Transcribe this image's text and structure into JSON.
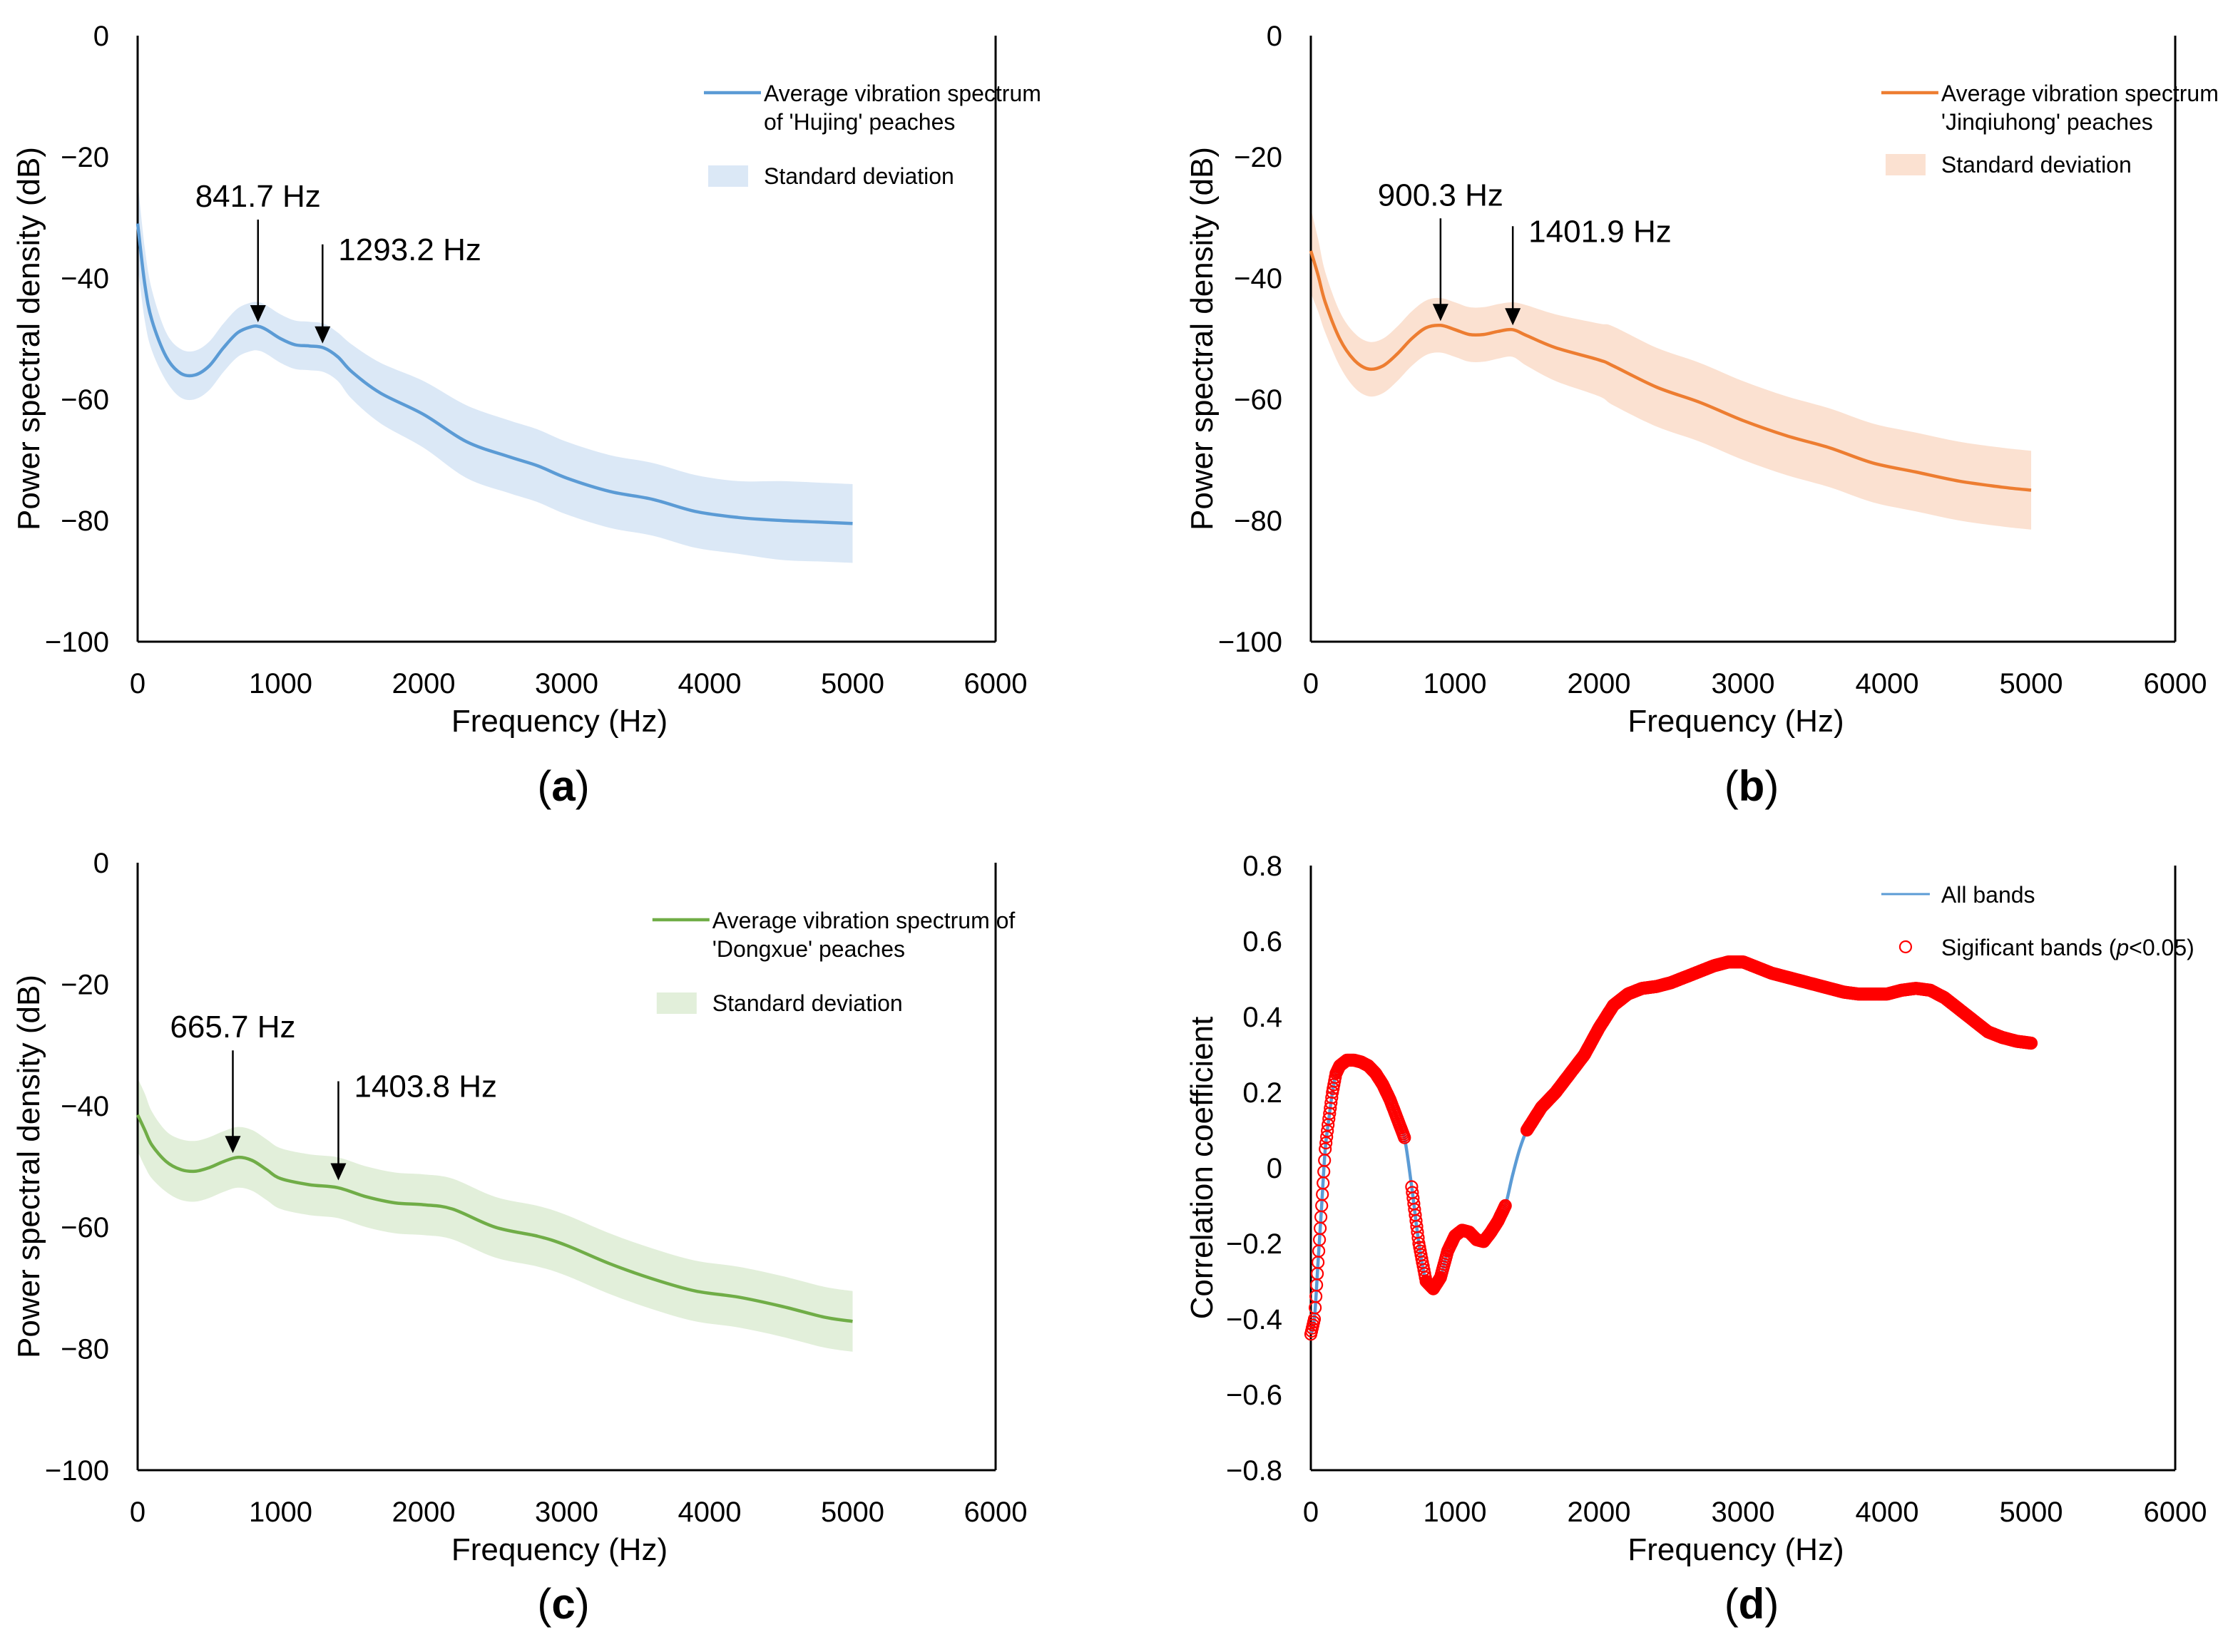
{
  "chart_data": [
    {
      "panel": "a",
      "type": "area",
      "xlabel": "Frequency (Hz)",
      "ylabel": "Power spectral density (dB)",
      "xlim": [
        0,
        6000
      ],
      "ylim": [
        -100,
        0
      ],
      "xticks": [
        "0",
        "1000",
        "2000",
        "3000",
        "4000",
        "5000",
        "6000"
      ],
      "yticks": [
        "0",
        "−20",
        "−40",
        "−60",
        "−80",
        "−100"
      ],
      "colors": {
        "line": "#5b9bd5",
        "band": "#dbe8f6"
      },
      "legend": {
        "placement": "top-right",
        "line_label": [
          "Average vibration spectrum",
          "of 'Hujing' peaches"
        ],
        "band_label": "Standard deviation"
      },
      "annotations": [
        {
          "text": "841.7 Hz",
          "x": 841.7,
          "y": -48
        },
        {
          "text": "1293.2 Hz",
          "x": 1293.2,
          "y": -51.5
        }
      ],
      "series": [
        {
          "name": "Average vibration spectrum of 'Hujing' peaches",
          "x": [
            0,
            50,
            100,
            200,
            300,
            400,
            500,
            600,
            700,
            800,
            850,
            900,
            1000,
            1100,
            1200,
            1300,
            1400,
            1500,
            1700,
            2000,
            2300,
            2600,
            2800,
            3000,
            3300,
            3600,
            3900,
            4200,
            4500,
            4800,
            5000
          ],
          "y": [
            -31,
            -41,
            -47,
            -53,
            -55.7,
            -56,
            -54.5,
            -51.5,
            -49,
            -48,
            -48,
            -48.5,
            -50,
            -51,
            -51.2,
            -51.5,
            -53,
            -55.5,
            -59,
            -62.5,
            -67,
            -69.5,
            -71,
            -73,
            -75.2,
            -76.5,
            -78.5,
            -79.5,
            -80,
            -80.3,
            -80.5
          ],
          "std": [
            7,
            6,
            5,
            4,
            4,
            4,
            4,
            4,
            4,
            4,
            4,
            4,
            4,
            4,
            4,
            4,
            4,
            4.5,
            5,
            5.5,
            6,
            6,
            6,
            6,
            6,
            6,
            6,
            6,
            6.5,
            6.5,
            6.5
          ]
        }
      ]
    },
    {
      "panel": "b",
      "type": "area",
      "xlabel": "Frequency (Hz)",
      "ylabel": "Power spectral density (dB)",
      "xlim": [
        0,
        6000
      ],
      "ylim": [
        -100,
        0
      ],
      "xticks": [
        "0",
        "1000",
        "2000",
        "3000",
        "4000",
        "5000",
        "6000"
      ],
      "yticks": [
        "0",
        "−20",
        "−40",
        "−60",
        "−80",
        "−100"
      ],
      "colors": {
        "line": "#ed7d31",
        "band": "#fbe1d1"
      },
      "legend": {
        "placement": "top-right",
        "line_label": [
          "Average vibration spectrum of",
          "'Jinqiuhong' peaches"
        ],
        "band_label": "Standard deviation"
      },
      "annotations": [
        {
          "text": "900.3 Hz",
          "x": 900.3,
          "y": -47.8
        },
        {
          "text": "1401.9 Hz",
          "x": 1401.9,
          "y": -48.5
        }
      ],
      "series": [
        {
          "name": "Average vibration spectrum of 'Jinqiuhong' peaches",
          "x": [
            0,
            50,
            100,
            200,
            300,
            400,
            500,
            600,
            700,
            800,
            900,
            1000,
            1100,
            1200,
            1300,
            1400,
            1500,
            1700,
            2000,
            2100,
            2400,
            2700,
            3000,
            3300,
            3600,
            3900,
            4200,
            4500,
            4800,
            5000
          ],
          "y": [
            -35.5,
            -39.5,
            -44,
            -50,
            -53.5,
            -55,
            -54.5,
            -52.5,
            -50,
            -48.2,
            -47.8,
            -48.5,
            -49.3,
            -49.3,
            -48.8,
            -48.5,
            -49.5,
            -51.5,
            -53.5,
            -54.5,
            -58,
            -60.5,
            -63.5,
            -66,
            -68,
            -70.5,
            -72,
            -73.5,
            -74.5,
            -75
          ],
          "std": [
            7,
            6,
            5,
            4.5,
            4.5,
            4.5,
            4.5,
            4.5,
            4.5,
            4.5,
            4.5,
            4.5,
            4.5,
            4.5,
            4.5,
            4.5,
            5,
            5.5,
            6,
            6.5,
            6.5,
            6.5,
            6.5,
            6.5,
            6.5,
            6.5,
            6.5,
            6.5,
            6.5,
            6.5
          ]
        }
      ]
    },
    {
      "panel": "c",
      "type": "area",
      "xlabel": "Frequency (Hz)",
      "ylabel": "Power spectral density (dB)",
      "xlim": [
        0,
        6000
      ],
      "ylim": [
        -100,
        0
      ],
      "xticks": [
        "0",
        "1000",
        "2000",
        "3000",
        "4000",
        "5000",
        "6000"
      ],
      "yticks": [
        "0",
        "−20",
        "−40",
        "−60",
        "−80",
        "−100"
      ],
      "colors": {
        "line": "#70ad47",
        "band": "#e2efda"
      },
      "legend": {
        "placement": "top-right",
        "line_label": [
          "Average vibration spectrum of",
          "'Dongxue' peaches"
        ],
        "band_label": "Standard deviation"
      },
      "annotations": [
        {
          "text": "665.7 Hz",
          "x": 665.7,
          "y": -48.5
        },
        {
          "text": "1403.8 Hz",
          "x": 1403.8,
          "y": -53
        }
      ],
      "series": [
        {
          "name": "Average vibration spectrum of 'Dongxue' peaches",
          "x": [
            0,
            50,
            100,
            200,
            300,
            400,
            500,
            600,
            700,
            800,
            900,
            1000,
            1200,
            1400,
            1600,
            1800,
            2000,
            2200,
            2500,
            2800,
            3000,
            3300,
            3600,
            3900,
            4200,
            4500,
            4800,
            5000
          ],
          "y": [
            -41.5,
            -44,
            -46.5,
            -49.2,
            -50.5,
            -50.8,
            -50.2,
            -49.2,
            -48.5,
            -49,
            -50.5,
            -52,
            -53,
            -53.5,
            -55,
            -56,
            -56.3,
            -57,
            -60,
            -61.5,
            -63,
            -66,
            -68.5,
            -70.5,
            -71.5,
            -73,
            -74.8,
            -75.5
          ],
          "std": [
            6,
            6,
            5.5,
            5,
            5,
            5,
            5,
            5,
            5,
            5,
            5,
            5,
            5,
            5,
            5,
            5,
            5,
            5,
            5,
            5,
            5,
            5,
            5,
            5,
            5,
            5,
            5,
            5
          ]
        }
      ]
    },
    {
      "panel": "d",
      "type": "line",
      "xlabel": "Frequency (Hz)",
      "ylabel": "Correlation coefficient",
      "xlim": [
        0,
        6000
      ],
      "ylim": [
        -0.8,
        0.8
      ],
      "xticks": [
        "0",
        "1000",
        "2000",
        "3000",
        "4000",
        "5000",
        "6000"
      ],
      "yticks": [
        "0.8",
        "0.6",
        "0.4",
        "0.2",
        "0",
        "−0.2",
        "−0.4",
        "−0.6",
        "−0.8"
      ],
      "colors": {
        "line": "#5b9bd5",
        "marker": "#ff0000"
      },
      "legend": {
        "placement": "top-right",
        "line_label": "All bands",
        "marker_label_prefix": "Sigificant bands (",
        "marker_label_italic": "p",
        "marker_label_suffix": "<0.05)"
      },
      "series": [
        {
          "name": "All bands",
          "x": [
            0,
            25,
            50,
            75,
            100,
            125,
            150,
            175,
            200,
            250,
            300,
            350,
            400,
            450,
            500,
            550,
            600,
            650,
            700,
            750,
            800,
            850,
            900,
            950,
            1000,
            1050,
            1100,
            1150,
            1200,
            1250,
            1300,
            1350,
            1400,
            1450,
            1500,
            1550,
            1600,
            1650,
            1700,
            1800,
            1900,
            2000,
            2100,
            2200,
            2300,
            2400,
            2500,
            2600,
            2700,
            2800,
            2900,
            3000,
            3100,
            3200,
            3300,
            3400,
            3500,
            3600,
            3700,
            3800,
            3900,
            4000,
            4100,
            4200,
            4300,
            4400,
            4500,
            4600,
            4700,
            4800,
            4900,
            5000
          ],
          "y": [
            -0.44,
            -0.4,
            -0.25,
            -0.1,
            0.05,
            0.13,
            0.2,
            0.25,
            0.27,
            0.285,
            0.285,
            0.28,
            0.27,
            0.25,
            0.22,
            0.18,
            0.13,
            0.08,
            -0.05,
            -0.2,
            -0.3,
            -0.32,
            -0.29,
            -0.22,
            -0.18,
            -0.165,
            -0.17,
            -0.19,
            -0.195,
            -0.17,
            -0.14,
            -0.1,
            -0.02,
            0.05,
            0.1,
            0.13,
            0.16,
            0.18,
            0.2,
            0.25,
            0.3,
            0.37,
            0.43,
            0.46,
            0.475,
            0.48,
            0.49,
            0.505,
            0.52,
            0.535,
            0.545,
            0.545,
            0.53,
            0.515,
            0.505,
            0.495,
            0.485,
            0.475,
            0.465,
            0.46,
            0.46,
            0.46,
            0.47,
            0.475,
            0.47,
            0.45,
            0.42,
            0.39,
            0.36,
            0.345,
            0.335,
            0.33
          ]
        }
      ],
      "significant_ranges_hz": [
        [
          0,
          650
        ],
        [
          700,
          1350
        ],
        [
          1500,
          5000
        ]
      ]
    }
  ],
  "panel_labels": [
    "a",
    "b",
    "c",
    "d"
  ]
}
